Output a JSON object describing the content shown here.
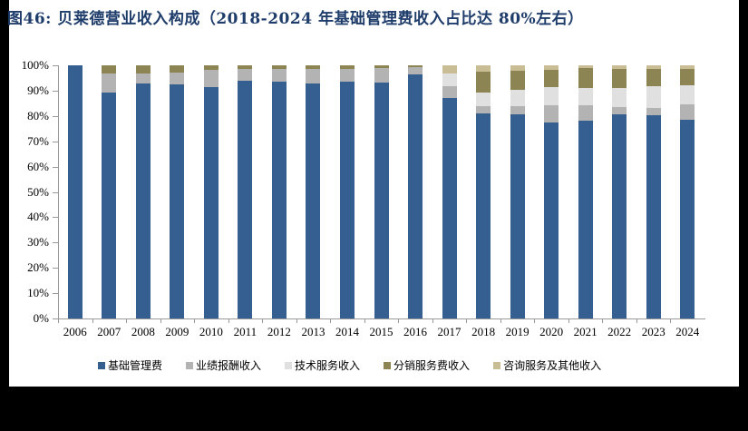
{
  "title": "图46:  贝莱德营业收入构成（2018-2024 年基础管理费收入占比达 80%左右）",
  "chart_data": {
    "type": "bar",
    "stacked": true,
    "title": "图46:  贝莱德营业收入构成（2018-2024 年基础管理费收入占比达 80%左右）",
    "xlabel": "",
    "ylabel": "",
    "ylim": [
      0,
      100
    ],
    "y_ticks": [
      "0%",
      "10%",
      "20%",
      "30%",
      "40%",
      "50%",
      "60%",
      "70%",
      "80%",
      "90%",
      "100%"
    ],
    "grid": false,
    "legend_position": "bottom",
    "categories": [
      "2006",
      "2007",
      "2008",
      "2009",
      "2010",
      "2011",
      "2012",
      "2013",
      "2014",
      "2015",
      "2016",
      "2017",
      "2018",
      "2019",
      "2020",
      "2021",
      "2022",
      "2023",
      "2024"
    ],
    "series": [
      {
        "name": "基础管理费",
        "color": "#355e91",
        "values": [
          100,
          89.1,
          92.7,
          92.5,
          91.5,
          94.0,
          93.5,
          93.0,
          93.6,
          93.3,
          96.4,
          87.0,
          81.0,
          80.8,
          77.6,
          78.3,
          80.6,
          80.3,
          78.6
        ]
      },
      {
        "name": "业绩报酬收入",
        "color": "#b3b3b3",
        "values": [
          0,
          7.8,
          4.0,
          4.8,
          6.8,
          4.5,
          5.0,
          5.4,
          5.0,
          5.6,
          2.8,
          4.6,
          2.9,
          3.2,
          6.8,
          6.0,
          2.9,
          3.0,
          5.9
        ]
      },
      {
        "name": "技术服务收入",
        "color": "#e0e0e0",
        "values": [
          0,
          0,
          0,
          0,
          0,
          0,
          0,
          0,
          0,
          0,
          0,
          5.3,
          5.5,
          6.5,
          7.0,
          6.8,
          7.7,
          8.3,
          7.7
        ]
      },
      {
        "name": "分销服务费收入",
        "color": "#8c8452",
        "values": [
          0,
          3.1,
          3.3,
          2.7,
          1.7,
          1.5,
          1.5,
          1.6,
          1.4,
          1.1,
          0.8,
          0,
          8.1,
          7.5,
          7.0,
          7.7,
          7.3,
          6.9,
          6.3
        ]
      },
      {
        "name": "咨询服务及其他收入",
        "color": "#c8bd94",
        "values": [
          0,
          0,
          0,
          0,
          0,
          0,
          0,
          0,
          0,
          0,
          0,
          3.1,
          2.5,
          2.0,
          1.6,
          1.2,
          1.5,
          1.5,
          1.5
        ]
      }
    ]
  }
}
